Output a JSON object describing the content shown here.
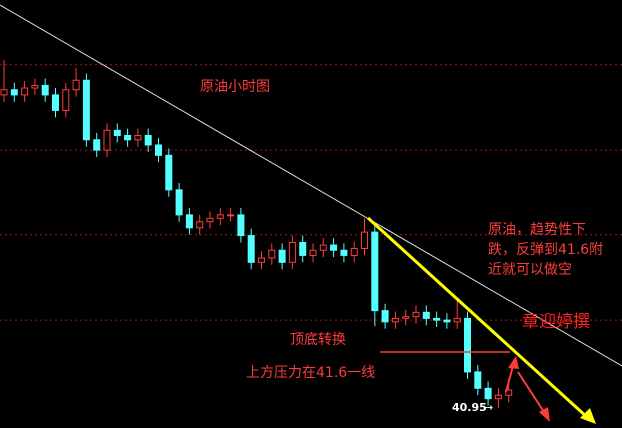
{
  "chart_data": {
    "type": "candlestick",
    "title": "原油小时图",
    "ylim": [
      40.72,
      45.68
    ],
    "grid_levels": [
      44.93,
      43.94,
      42.96,
      41.97
    ],
    "up_color": "#ff3c3c",
    "down_color": "#54ffff",
    "open": [
      44.58,
      44.64,
      44.58,
      44.66,
      44.69,
      44.58,
      44.4,
      44.64,
      44.75,
      44.06,
      43.94,
      44.17,
      44.11,
      44.06,
      44.11,
      44.0,
      43.88,
      43.48,
      43.19,
      43.04,
      43.11,
      43.15,
      43.19,
      43.19,
      42.95,
      42.64,
      42.69,
      42.78,
      42.64,
      42.87,
      42.72,
      42.78,
      42.84,
      42.78,
      42.72,
      42.8,
      42.99,
      42.08,
      41.95,
      41.99,
      42.01,
      42.06,
      41.99,
      41.97,
      41.95,
      41.99,
      41.37,
      41.18,
      41.06,
      41.1
    ],
    "high": [
      44.98,
      44.72,
      44.74,
      44.77,
      44.77,
      44.66,
      44.72,
      44.89,
      44.83,
      44.14,
      44.25,
      44.25,
      44.19,
      44.19,
      44.19,
      44.08,
      43.96,
      43.56,
      43.27,
      43.19,
      43.23,
      43.27,
      43.27,
      43.27,
      43.03,
      42.77,
      42.86,
      42.86,
      42.95,
      42.95,
      42.86,
      42.92,
      42.92,
      42.86,
      42.88,
      43.15,
      43.07,
      42.16,
      42.07,
      42.09,
      42.14,
      42.14,
      42.07,
      42.05,
      42.2,
      42.07,
      41.45,
      41.26,
      41.18,
      41.24
    ],
    "low": [
      44.5,
      44.5,
      44.5,
      44.58,
      44.5,
      44.32,
      44.32,
      44.56,
      43.98,
      43.86,
      43.86,
      44.03,
      43.98,
      43.98,
      43.92,
      43.8,
      43.4,
      43.11,
      42.96,
      42.96,
      43.03,
      43.07,
      43.11,
      42.87,
      42.56,
      42.56,
      42.61,
      42.56,
      42.56,
      42.64,
      42.64,
      42.7,
      42.7,
      42.64,
      42.64,
      42.72,
      41.9,
      41.87,
      41.87,
      41.91,
      41.93,
      41.91,
      41.89,
      41.87,
      41.87,
      41.29,
      41.1,
      40.98,
      40.95,
      41.02
    ],
    "close": [
      44.64,
      44.58,
      44.66,
      44.69,
      44.58,
      44.4,
      44.64,
      44.75,
      44.06,
      43.94,
      44.17,
      44.11,
      44.06,
      44.11,
      44.0,
      43.88,
      43.48,
      43.19,
      43.04,
      43.11,
      43.15,
      43.19,
      43.19,
      42.95,
      42.64,
      42.69,
      42.78,
      42.64,
      42.87,
      42.72,
      42.78,
      42.84,
      42.78,
      42.72,
      42.8,
      42.99,
      42.08,
      41.95,
      41.99,
      42.01,
      42.06,
      41.99,
      41.97,
      41.95,
      41.99,
      41.37,
      41.18,
      41.06,
      41.1,
      41.16
    ],
    "annotations": {
      "analysis": [
        "原油，趋势性下",
        "跌，反弹到41.6附",
        "近就可以做空"
      ],
      "author": "章迎婷撰",
      "reversal": "顶底转换",
      "resistance": "上方压力在41.6一线"
    }
  }
}
